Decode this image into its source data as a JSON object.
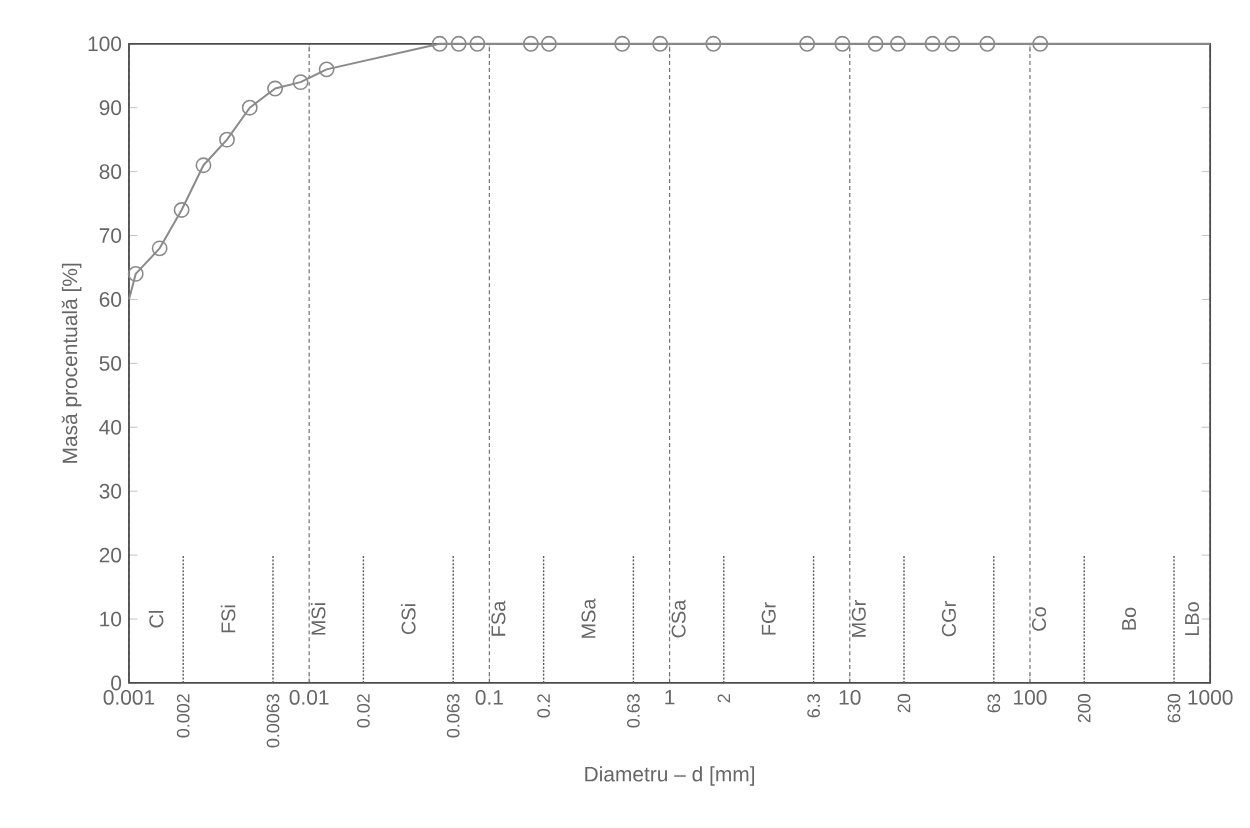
{
  "chart_data": {
    "type": "line",
    "xlabel": "Diametru – d [mm]",
    "ylabel": "Masă procentuală [%]",
    "log": "x",
    "grid": "x",
    "marker": "circle",
    "line_style": "solid",
    "xlim": [
      0.001,
      1000
    ],
    "ylim": [
      0,
      100
    ],
    "xticks": [
      0.001,
      0.01,
      0.1,
      1,
      10,
      100,
      1000
    ],
    "yticks": [
      0,
      10,
      20,
      30,
      40,
      50,
      60,
      70,
      80,
      90,
      100
    ],
    "x": [
      0.001,
      0.00109,
      0.00148,
      0.00196,
      0.00259,
      0.0035,
      0.00468,
      0.00647,
      0.00896,
      0.0125,
      0.053,
      0.0676,
      0.0858,
      0.17,
      0.214,
      0.546,
      0.887,
      1.75,
      5.8,
      9.1,
      13.9,
      18.5,
      28.8,
      37.1,
      58,
      114,
      1000
    ],
    "series": [
      {
        "color": "#8a8a8a",
        "values": [
          60,
          64,
          68,
          74,
          81,
          85,
          90,
          93,
          94,
          96,
          100,
          100,
          100,
          100,
          100,
          100,
          100,
          100,
          100,
          100,
          100,
          100,
          100,
          100,
          100,
          100,
          100
        ]
      }
    ],
    "ref_lines": [
      {
        "axis": "x",
        "value": 0.002,
        "label": "0.002"
      },
      {
        "axis": "x",
        "value": 0.0063,
        "label": "0.0063"
      },
      {
        "axis": "x",
        "value": 0.02,
        "label": "0.02"
      },
      {
        "axis": "x",
        "value": 0.063,
        "label": "0.063"
      },
      {
        "axis": "x",
        "value": 0.2,
        "label": "0.2"
      },
      {
        "axis": "x",
        "value": 0.63,
        "label": "0.63"
      },
      {
        "axis": "x",
        "value": 2,
        "label": "2"
      },
      {
        "axis": "x",
        "value": 6.3,
        "label": "6.3"
      },
      {
        "axis": "x",
        "value": 20,
        "label": "20"
      },
      {
        "axis": "x",
        "value": 63,
        "label": "63"
      },
      {
        "axis": "x",
        "value": 200,
        "label": "200"
      },
      {
        "axis": "x",
        "value": 630,
        "label": "630"
      }
    ],
    "annotations": [
      "Cl",
      "FSi",
      "MSi",
      "CSi",
      "FSa",
      "MSa",
      "CSa",
      "FGr",
      "MGr",
      "CGr",
      "Co",
      "Bo",
      "LBo"
    ]
  }
}
